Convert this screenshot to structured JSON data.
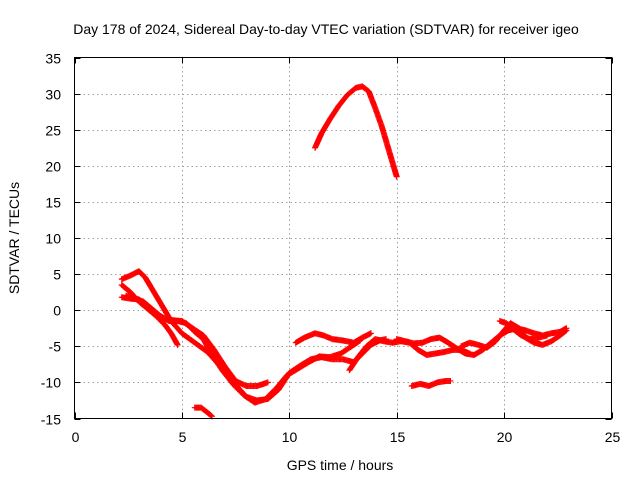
{
  "chart_data": {
    "type": "scatter",
    "title": "Day 178 of 2024, Sidereal Day-to-day VTEC variation (SDTVAR) for receiver igeo",
    "xlabel": "GPS time / hours",
    "ylabel": "SDTVAR / TECUs",
    "xlim": [
      0,
      25
    ],
    "ylim": [
      -15,
      35
    ],
    "xticks": [
      0,
      5,
      10,
      15,
      20,
      25
    ],
    "yticks": [
      -15,
      -10,
      -5,
      0,
      5,
      10,
      15,
      20,
      25,
      30,
      35
    ],
    "xtick_labels": [
      "0",
      "5",
      "10",
      "15",
      "20",
      "25"
    ],
    "ytick_labels": [
      "-15",
      "-10",
      "-5",
      "0",
      "5",
      "10",
      "15",
      "20",
      "25",
      "30",
      "35"
    ],
    "grid": true,
    "marker": "+",
    "color": "#ff0000",
    "series": [
      {
        "name": "arc-1",
        "points": [
          [
            2.2,
            4.3
          ],
          [
            2.6,
            4.8
          ],
          [
            3.0,
            5.4
          ],
          [
            3.3,
            4.5
          ],
          [
            3.7,
            2.5
          ],
          [
            4.1,
            0.5
          ],
          [
            4.5,
            -1.5
          ],
          [
            5.0,
            -3.2
          ],
          [
            5.6,
            -4.5
          ],
          [
            6.2,
            -5.8
          ],
          [
            6.8,
            -7.8
          ],
          [
            7.4,
            -10.0
          ],
          [
            8.0,
            -12.0
          ],
          [
            8.5,
            -12.5
          ],
          [
            9.0,
            -12.3
          ],
          [
            9.5,
            -11.0
          ],
          [
            10.0,
            -8.7
          ],
          [
            10.5,
            -7.7
          ],
          [
            11.0,
            -6.8
          ],
          [
            11.5,
            -6.5
          ],
          [
            12.0,
            -6.8
          ],
          [
            12.5,
            -6.8
          ],
          [
            13.0,
            -7.2
          ],
          [
            13.4,
            -6.0
          ],
          [
            13.8,
            -4.8
          ],
          [
            14.2,
            -4.2
          ],
          [
            14.5,
            -4.0
          ]
        ]
      },
      {
        "name": "arc-2",
        "points": [
          [
            2.2,
            3.5
          ],
          [
            2.6,
            2.5
          ],
          [
            3.0,
            1.2
          ],
          [
            3.4,
            0.2
          ],
          [
            3.8,
            -0.8
          ],
          [
            4.2,
            -2.0
          ],
          [
            4.5,
            -3.2
          ],
          [
            4.8,
            -4.8
          ]
        ]
      },
      {
        "name": "arc-3",
        "points": [
          [
            2.2,
            1.8
          ],
          [
            2.6,
            1.6
          ],
          [
            3.0,
            1.5
          ],
          [
            3.4,
            0.5
          ],
          [
            3.8,
            -0.5
          ],
          [
            4.2,
            -1.2
          ],
          [
            4.6,
            -1.4
          ],
          [
            5.0,
            -1.5
          ],
          [
            5.5,
            -2.5
          ],
          [
            6.0,
            -3.5
          ],
          [
            6.5,
            -5.5
          ],
          [
            7.0,
            -7.8
          ],
          [
            7.5,
            -9.8
          ],
          [
            8.0,
            -10.5
          ],
          [
            8.5,
            -10.5
          ],
          [
            9.0,
            -10.0
          ]
        ]
      },
      {
        "name": "arc-4",
        "points": [
          [
            2.4,
            2.0
          ],
          [
            2.8,
            1.6
          ],
          [
            3.2,
            1.2
          ],
          [
            3.6,
            0.2
          ],
          [
            4.0,
            -0.8
          ],
          [
            4.4,
            -1.5
          ],
          [
            4.8,
            -1.5
          ],
          [
            5.2,
            -1.8
          ],
          [
            5.6,
            -3.0
          ],
          [
            6.0,
            -4.0
          ],
          [
            6.4,
            -6.2
          ],
          [
            6.9,
            -8.4
          ],
          [
            7.4,
            -10.3
          ],
          [
            7.9,
            -11.8
          ],
          [
            8.4,
            -12.8
          ],
          [
            8.9,
            -12.3
          ],
          [
            9.4,
            -10.8
          ],
          [
            9.9,
            -9.0
          ],
          [
            10.4,
            -8.1
          ],
          [
            10.9,
            -7.2
          ],
          [
            11.4,
            -6.4
          ],
          [
            11.9,
            -6.5
          ],
          [
            12.4,
            -6.0
          ],
          [
            12.9,
            -5.0
          ],
          [
            13.3,
            -4.2
          ]
        ]
      },
      {
        "name": "arc-5",
        "points": [
          [
            10.3,
            -4.5
          ],
          [
            10.7,
            -3.8
          ],
          [
            11.2,
            -3.2
          ],
          [
            11.6,
            -3.5
          ],
          [
            12.0,
            -4.0
          ],
          [
            12.5,
            -4.2
          ],
          [
            13.0,
            -4.5
          ],
          [
            13.4,
            -3.8
          ],
          [
            13.8,
            -3.2
          ]
        ]
      },
      {
        "name": "arc-6",
        "points": [
          [
            11.2,
            22.5
          ],
          [
            11.5,
            24.5
          ],
          [
            11.9,
            26.5
          ],
          [
            12.3,
            28.3
          ],
          [
            12.7,
            29.8
          ],
          [
            13.1,
            30.8
          ],
          [
            13.4,
            31.0
          ],
          [
            13.7,
            30.3
          ],
          [
            14.0,
            28.0
          ],
          [
            14.3,
            25.5
          ],
          [
            14.6,
            22.5
          ],
          [
            14.9,
            19.5
          ],
          [
            15.0,
            18.5
          ]
        ]
      },
      {
        "name": "arc-7",
        "points": [
          [
            12.8,
            -8.3
          ],
          [
            13.2,
            -6.5
          ],
          [
            13.6,
            -5.0
          ],
          [
            14.0,
            -4.0
          ],
          [
            14.4,
            -4.3
          ],
          [
            14.8,
            -4.5
          ],
          [
            15.2,
            -4.3
          ],
          [
            15.6,
            -4.5
          ],
          [
            16.0,
            -5.5
          ],
          [
            16.4,
            -6.2
          ],
          [
            16.8,
            -6.0
          ],
          [
            17.2,
            -5.8
          ],
          [
            17.6,
            -5.5
          ],
          [
            18.0,
            -5.5
          ],
          [
            18.4,
            -6.0
          ]
        ]
      },
      {
        "name": "arc-8",
        "points": [
          [
            15.0,
            -4.0
          ],
          [
            15.4,
            -4.3
          ],
          [
            15.8,
            -4.6
          ],
          [
            16.2,
            -4.5
          ],
          [
            16.6,
            -4.0
          ],
          [
            17.0,
            -3.8
          ],
          [
            17.4,
            -4.5
          ],
          [
            17.8,
            -5.3
          ],
          [
            18.2,
            -6.0
          ],
          [
            18.6,
            -6.2
          ],
          [
            19.0,
            -5.5
          ],
          [
            19.4,
            -4.5
          ],
          [
            19.8,
            -3.5
          ],
          [
            20.2,
            -2.8
          ],
          [
            20.6,
            -2.5
          ],
          [
            21.0,
            -2.8
          ],
          [
            21.4,
            -3.2
          ],
          [
            21.8,
            -3.5
          ],
          [
            22.2,
            -3.2
          ],
          [
            22.6,
            -3.0
          ],
          [
            22.9,
            -2.5
          ]
        ]
      },
      {
        "name": "arc-9",
        "points": [
          [
            18.0,
            -5.0
          ],
          [
            18.4,
            -4.5
          ],
          [
            18.8,
            -4.8
          ],
          [
            19.2,
            -5.2
          ],
          [
            19.6,
            -4.3
          ],
          [
            20.0,
            -2.8
          ],
          [
            20.3,
            -1.8
          ],
          [
            20.7,
            -2.5
          ],
          [
            21.0,
            -3.8
          ],
          [
            21.4,
            -4.5
          ],
          [
            21.8,
            -4.8
          ],
          [
            22.2,
            -4.3
          ],
          [
            22.6,
            -3.5
          ],
          [
            22.9,
            -2.8
          ]
        ]
      },
      {
        "name": "arc-10",
        "points": [
          [
            19.8,
            -1.5
          ],
          [
            20.1,
            -1.8
          ],
          [
            20.5,
            -2.8
          ],
          [
            20.8,
            -3.5
          ],
          [
            21.2,
            -4.0
          ],
          [
            21.6,
            -3.8
          ],
          [
            22.0,
            -3.5
          ]
        ]
      },
      {
        "name": "arc-11",
        "points": [
          [
            15.7,
            -10.5
          ],
          [
            16.1,
            -10.2
          ],
          [
            16.5,
            -10.5
          ],
          [
            16.9,
            -10.0
          ],
          [
            17.3,
            -9.8
          ],
          [
            17.5,
            -9.8
          ]
        ]
      },
      {
        "name": "arc-12",
        "points": [
          [
            5.6,
            -13.5
          ],
          [
            5.9,
            -13.5
          ],
          [
            6.2,
            -14.2
          ],
          [
            6.4,
            -14.7
          ]
        ]
      }
    ]
  }
}
